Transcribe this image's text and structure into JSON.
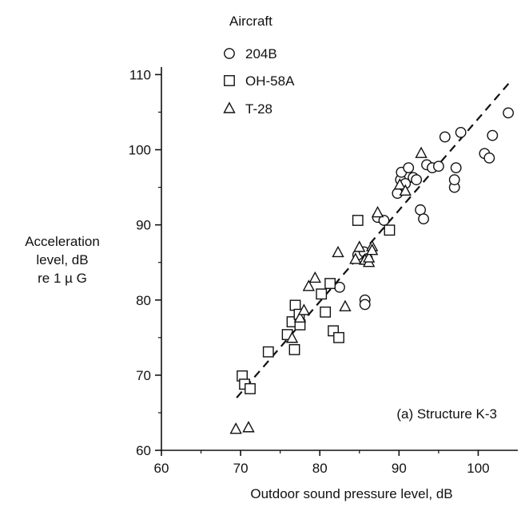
{
  "chart_data": {
    "type": "scatter",
    "xlabel": "Outdoor sound pressure level, dB",
    "ylabel_lines": [
      "Acceleration",
      "level, dB",
      "re 1 µ G"
    ],
    "xlim": [
      60,
      105
    ],
    "ylim": [
      60,
      111
    ],
    "x_ticks": [
      "60",
      "70",
      "80",
      "90",
      "100"
    ],
    "y_ticks": [
      "60",
      "70",
      "80",
      "90",
      "100",
      "110"
    ],
    "grid": false,
    "legend_title": "Aircraft",
    "legend_position": "top-left",
    "annotation": "(a) Structure K-3",
    "trend_line": {
      "style": "dashed",
      "from": [
        69.5,
        67
      ],
      "to": [
        104,
        109
      ]
    },
    "series": [
      {
        "name": "204B",
        "marker": "circle",
        "points": [
          [
            89.8,
            94.2
          ],
          [
            90.2,
            96.0
          ],
          [
            90.3,
            97.0
          ],
          [
            90.8,
            95.5
          ],
          [
            91.2,
            97.6
          ],
          [
            91.8,
            96.3
          ],
          [
            92.2,
            96.0
          ],
          [
            92.7,
            92.0
          ],
          [
            93.1,
            90.8
          ],
          [
            93.5,
            98.0
          ],
          [
            94.2,
            97.6
          ],
          [
            95.0,
            97.8
          ],
          [
            95.8,
            101.7
          ],
          [
            97.0,
            95.0
          ],
          [
            97.0,
            96.0
          ],
          [
            97.2,
            97.6
          ],
          [
            97.8,
            102.3
          ],
          [
            100.8,
            99.5
          ],
          [
            101.4,
            98.9
          ],
          [
            101.8,
            101.9
          ],
          [
            103.8,
            104.9
          ],
          [
            84.8,
            86.0
          ],
          [
            85.6,
            86.4
          ],
          [
            86.0,
            85.5
          ],
          [
            87.3,
            91.0
          ],
          [
            88.1,
            90.6
          ],
          [
            85.7,
            80.0
          ],
          [
            85.7,
            79.4
          ],
          [
            82.5,
            81.7
          ]
        ]
      },
      {
        "name": "OH-58A",
        "marker": "square",
        "points": [
          [
            70.2,
            69.9
          ],
          [
            70.5,
            68.8
          ],
          [
            71.2,
            68.2
          ],
          [
            73.5,
            73.1
          ],
          [
            75.9,
            75.4
          ],
          [
            76.5,
            77.1
          ],
          [
            76.8,
            73.4
          ],
          [
            76.9,
            79.3
          ],
          [
            77.5,
            76.7
          ],
          [
            77.4,
            78.1
          ],
          [
            80.2,
            80.8
          ],
          [
            80.7,
            78.4
          ],
          [
            81.3,
            82.2
          ],
          [
            81.7,
            75.9
          ],
          [
            82.4,
            75.0
          ],
          [
            84.8,
            90.6
          ],
          [
            88.8,
            89.3
          ]
        ]
      },
      {
        "name": "T-28",
        "marker": "triangle",
        "points": [
          [
            69.4,
            62.8
          ],
          [
            71.0,
            63.0
          ],
          [
            76.5,
            74.9
          ],
          [
            77.5,
            77.6
          ],
          [
            78.0,
            78.6
          ],
          [
            78.6,
            81.8
          ],
          [
            79.4,
            82.9
          ],
          [
            82.3,
            86.3
          ],
          [
            83.2,
            79.1
          ],
          [
            84.5,
            85.4
          ],
          [
            85.0,
            87.0
          ],
          [
            85.7,
            85.3
          ],
          [
            86.2,
            85.0
          ],
          [
            86.6,
            87.1
          ],
          [
            86.2,
            85.6
          ],
          [
            87.3,
            91.6
          ],
          [
            90.1,
            95.3
          ],
          [
            90.8,
            94.5
          ],
          [
            92.8,
            99.5
          ],
          [
            86.6,
            86.6
          ]
        ]
      }
    ]
  }
}
